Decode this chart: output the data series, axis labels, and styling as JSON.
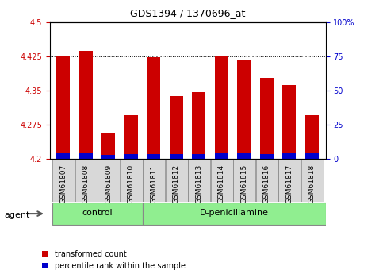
{
  "title": "GDS1394 / 1370696_at",
  "categories": [
    "GSM61807",
    "GSM61808",
    "GSM61809",
    "GSM61810",
    "GSM61811",
    "GSM61812",
    "GSM61813",
    "GSM61814",
    "GSM61815",
    "GSM61816",
    "GSM61817",
    "GSM61818"
  ],
  "red_values": [
    4.426,
    4.437,
    4.255,
    4.296,
    4.423,
    4.337,
    4.346,
    4.424,
    4.418,
    4.378,
    4.362,
    4.295
  ],
  "blue_values": [
    4.213,
    4.212,
    4.208,
    4.211,
    4.211,
    4.211,
    4.211,
    4.212,
    4.212,
    4.211,
    4.212,
    4.212
  ],
  "ymin": 4.2,
  "ymax": 4.5,
  "y_ticks_left": [
    4.2,
    4.275,
    4.35,
    4.425,
    4.5
  ],
  "y_ticks_right": [
    0,
    25,
    50,
    75,
    100
  ],
  "bar_color": "#cc0000",
  "blue_color": "#0000cc",
  "tick_color_left": "#cc0000",
  "tick_color_right": "#0000cc",
  "bar_width": 0.6,
  "figsize": [
    4.83,
    3.45
  ],
  "dpi": 100,
  "control_count": 4,
  "treatment_count": 8,
  "legend_items": [
    {
      "label": "transformed count",
      "color": "#cc0000"
    },
    {
      "label": "percentile rank within the sample",
      "color": "#0000cc"
    }
  ]
}
